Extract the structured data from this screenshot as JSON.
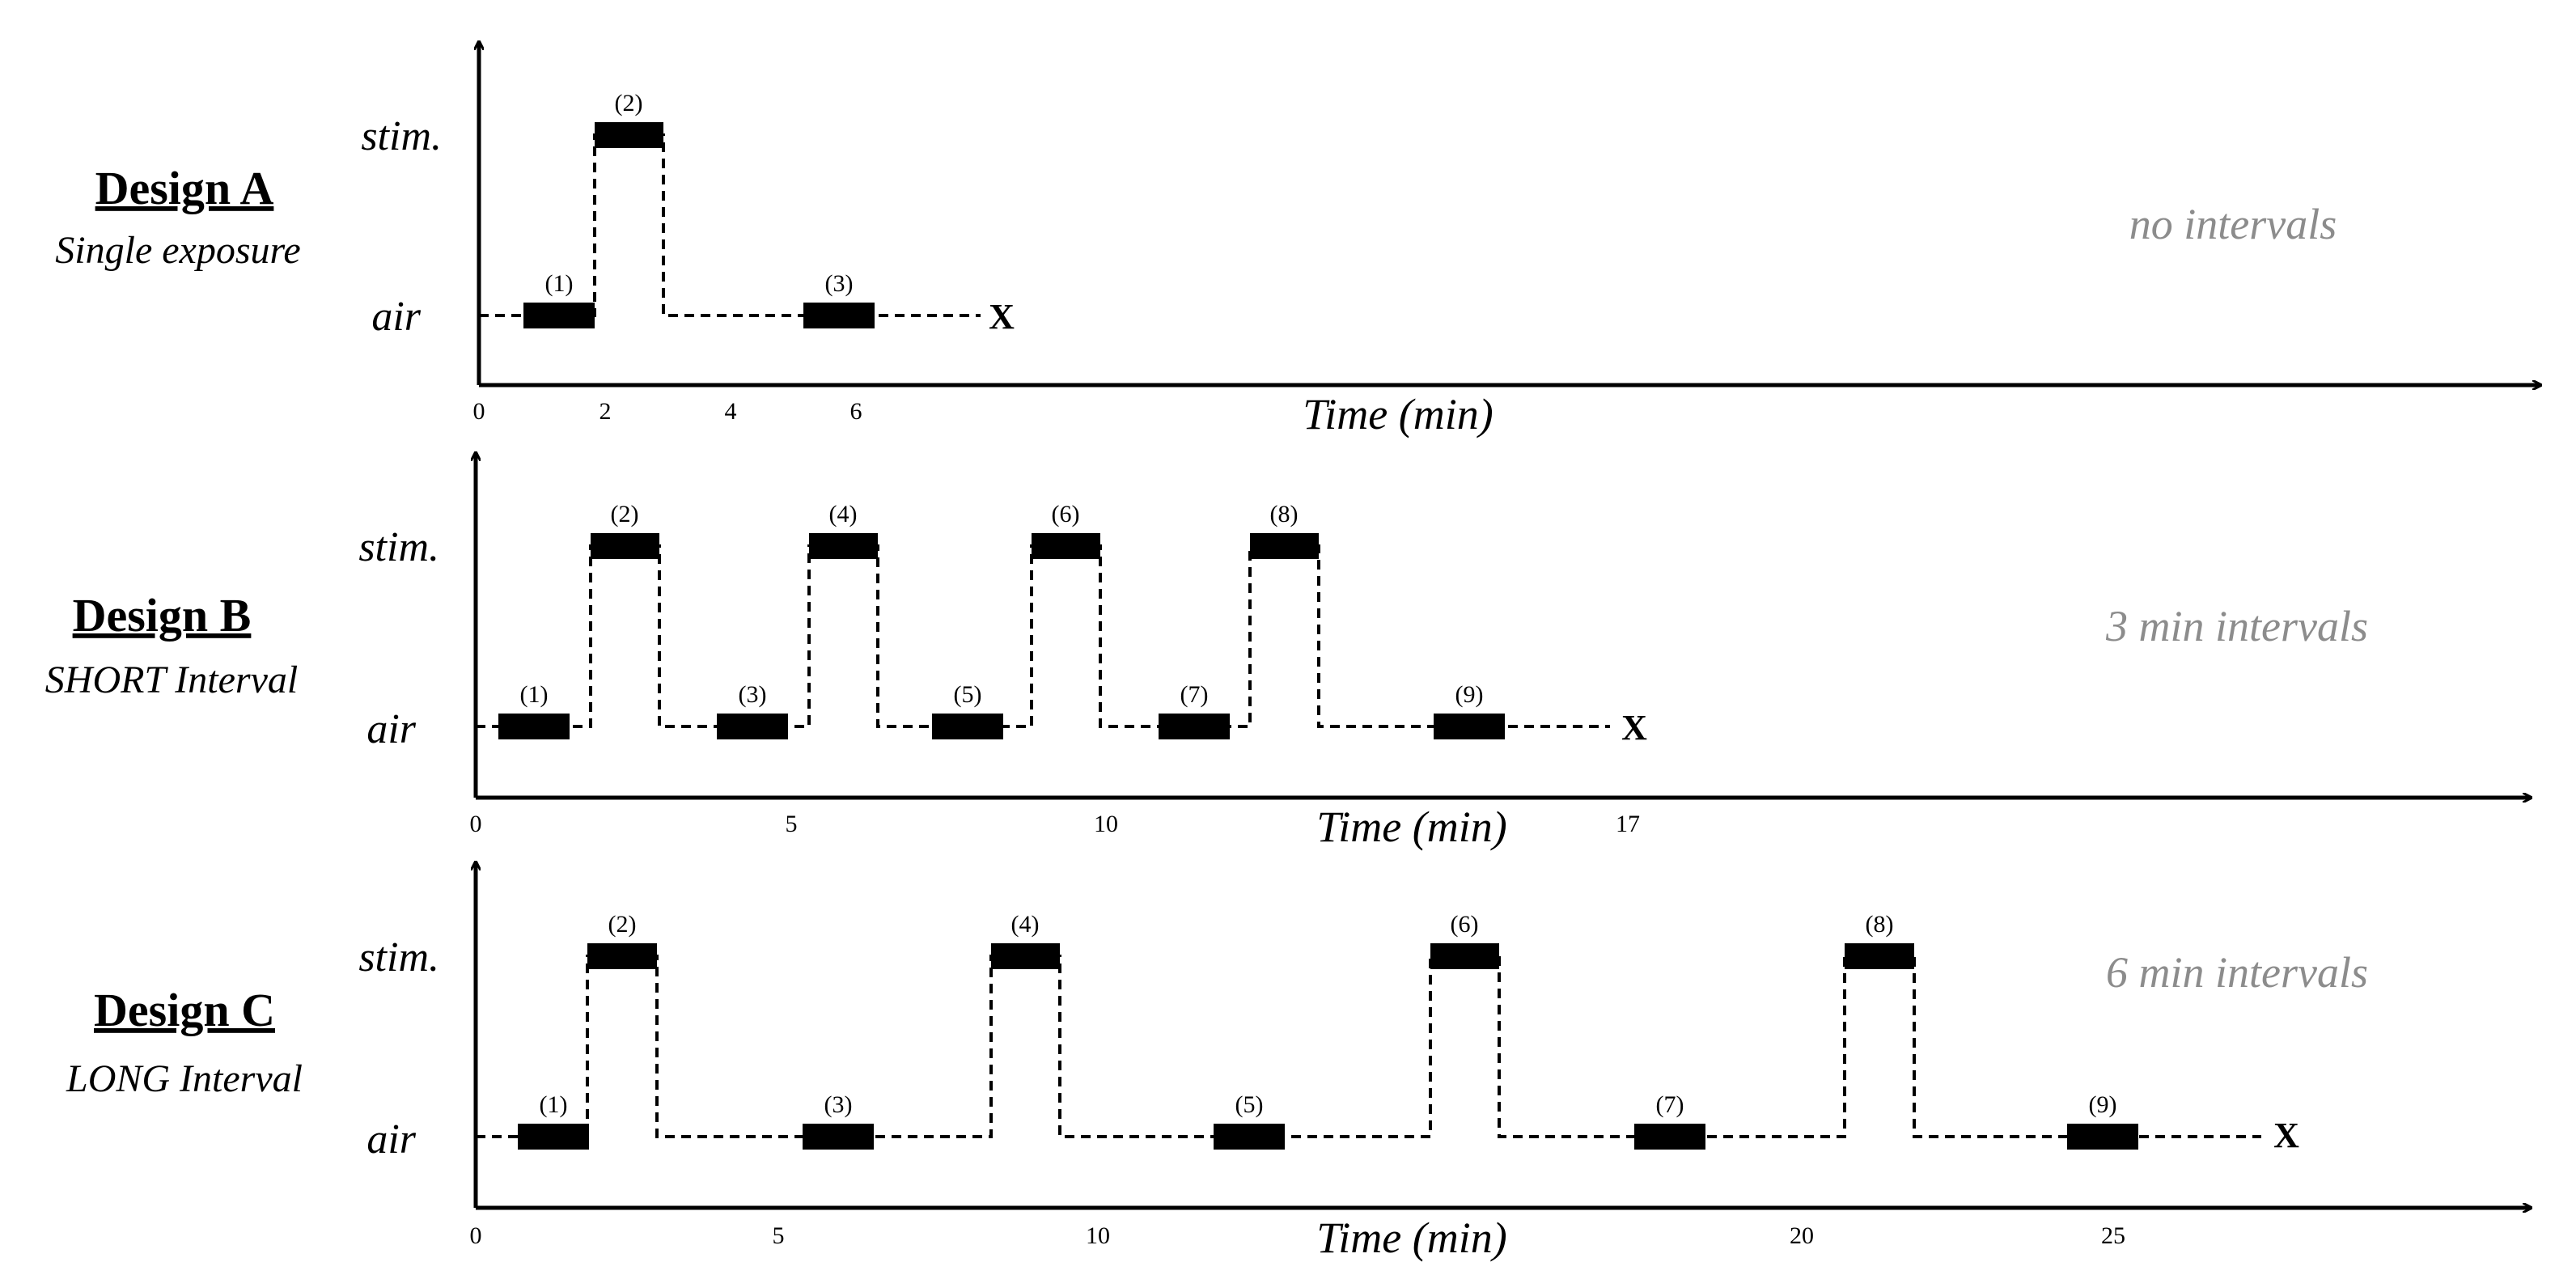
{
  "time_axis_label": "Time (min)",
  "level_labels": {
    "stim": "stim.",
    "air": "air"
  },
  "end_marker": "X",
  "designs": [
    {
      "title": "Design A",
      "subtitle": "Single exposure",
      "note": "no intervals",
      "ticks": [
        "0",
        "2",
        "4",
        "6"
      ],
      "segments": [
        {
          "label": "(1)",
          "level": "air"
        },
        {
          "label": "(2)",
          "level": "stim"
        },
        {
          "label": "(3)",
          "level": "air"
        }
      ]
    },
    {
      "title": "Design B",
      "subtitle": "SHORT Interval",
      "note": "3 min intervals",
      "ticks": [
        "0",
        "5",
        "10",
        "17"
      ],
      "segments": [
        {
          "label": "(1)",
          "level": "air"
        },
        {
          "label": "(2)",
          "level": "stim"
        },
        {
          "label": "(3)",
          "level": "air"
        },
        {
          "label": "(4)",
          "level": "stim"
        },
        {
          "label": "(5)",
          "level": "air"
        },
        {
          "label": "(6)",
          "level": "stim"
        },
        {
          "label": "(7)",
          "level": "air"
        },
        {
          "label": "(8)",
          "level": "stim"
        },
        {
          "label": "(9)",
          "level": "air"
        }
      ]
    },
    {
      "title": "Design C",
      "subtitle": "LONG Interval",
      "note": "6 min intervals",
      "ticks": [
        "0",
        "5",
        "10",
        "20",
        "25"
      ],
      "segments": [
        {
          "label": "(1)",
          "level": "air"
        },
        {
          "label": "(2)",
          "level": "stim"
        },
        {
          "label": "(3)",
          "level": "air"
        },
        {
          "label": "(4)",
          "level": "stim"
        },
        {
          "label": "(5)",
          "level": "air"
        },
        {
          "label": "(6)",
          "level": "stim"
        },
        {
          "label": "(7)",
          "level": "air"
        },
        {
          "label": "(8)",
          "level": "stim"
        },
        {
          "label": "(9)",
          "level": "air"
        }
      ]
    }
  ]
}
